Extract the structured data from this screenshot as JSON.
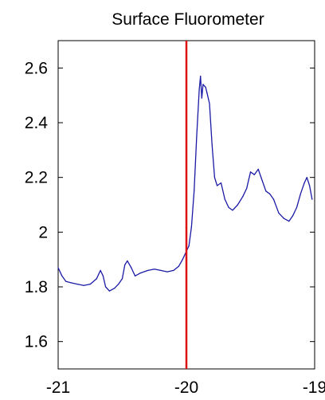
{
  "chart_data": {
    "type": "line",
    "title": "Surface Fluorometer",
    "xlabel": "",
    "ylabel": "",
    "xlim": [
      -21,
      -19
    ],
    "ylim": [
      1.5,
      2.7
    ],
    "x_ticks": [
      -21,
      -20,
      -19
    ],
    "x_tick_labels": [
      "-21",
      "-20",
      "-19"
    ],
    "y_ticks": [
      1.6,
      1.8,
      2.0,
      2.2,
      2.4,
      2.6
    ],
    "y_tick_labels": [
      "1.6",
      "1.8",
      "2",
      "2.2",
      "2.4",
      "2.6"
    ],
    "grid": false,
    "legend": false,
    "series": [
      {
        "color": "#1a1aa6",
        "points": [
          [
            -21.0,
            1.87
          ],
          [
            -20.97,
            1.84
          ],
          [
            -20.94,
            1.82
          ],
          [
            -20.9,
            1.815
          ],
          [
            -20.85,
            1.81
          ],
          [
            -20.8,
            1.805
          ],
          [
            -20.75,
            1.81
          ],
          [
            -20.7,
            1.83
          ],
          [
            -20.67,
            1.86
          ],
          [
            -20.65,
            1.84
          ],
          [
            -20.63,
            1.8
          ],
          [
            -20.6,
            1.785
          ],
          [
            -20.56,
            1.795
          ],
          [
            -20.53,
            1.81
          ],
          [
            -20.5,
            1.83
          ],
          [
            -20.48,
            1.88
          ],
          [
            -20.46,
            1.895
          ],
          [
            -20.43,
            1.87
          ],
          [
            -20.4,
            1.84
          ],
          [
            -20.36,
            1.85
          ],
          [
            -20.3,
            1.86
          ],
          [
            -20.25,
            1.865
          ],
          [
            -20.2,
            1.86
          ],
          [
            -20.15,
            1.855
          ],
          [
            -20.1,
            1.86
          ],
          [
            -20.06,
            1.875
          ],
          [
            -20.03,
            1.9
          ],
          [
            -20.0,
            1.93
          ],
          [
            -19.98,
            1.95
          ],
          [
            -19.96,
            2.02
          ],
          [
            -19.94,
            2.15
          ],
          [
            -19.92,
            2.35
          ],
          [
            -19.9,
            2.52
          ],
          [
            -19.89,
            2.57
          ],
          [
            -19.88,
            2.49
          ],
          [
            -19.87,
            2.54
          ],
          [
            -19.85,
            2.53
          ],
          [
            -19.84,
            2.51
          ],
          [
            -19.82,
            2.47
          ],
          [
            -19.8,
            2.32
          ],
          [
            -19.78,
            2.2
          ],
          [
            -19.76,
            2.17
          ],
          [
            -19.73,
            2.18
          ],
          [
            -19.7,
            2.12
          ],
          [
            -19.67,
            2.09
          ],
          [
            -19.64,
            2.08
          ],
          [
            -19.6,
            2.1
          ],
          [
            -19.56,
            2.13
          ],
          [
            -19.53,
            2.16
          ],
          [
            -19.5,
            2.22
          ],
          [
            -19.47,
            2.21
          ],
          [
            -19.44,
            2.23
          ],
          [
            -19.41,
            2.19
          ],
          [
            -19.38,
            2.15
          ],
          [
            -19.35,
            2.14
          ],
          [
            -19.32,
            2.12
          ],
          [
            -19.28,
            2.07
          ],
          [
            -19.24,
            2.05
          ],
          [
            -19.2,
            2.04
          ],
          [
            -19.17,
            2.06
          ],
          [
            -19.14,
            2.09
          ],
          [
            -19.11,
            2.14
          ],
          [
            -19.08,
            2.18
          ],
          [
            -19.06,
            2.2
          ],
          [
            -19.04,
            2.17
          ],
          [
            -19.02,
            2.12
          ]
        ]
      }
    ],
    "reference_line": {
      "x": -20.0,
      "color": "#dd1111"
    }
  }
}
